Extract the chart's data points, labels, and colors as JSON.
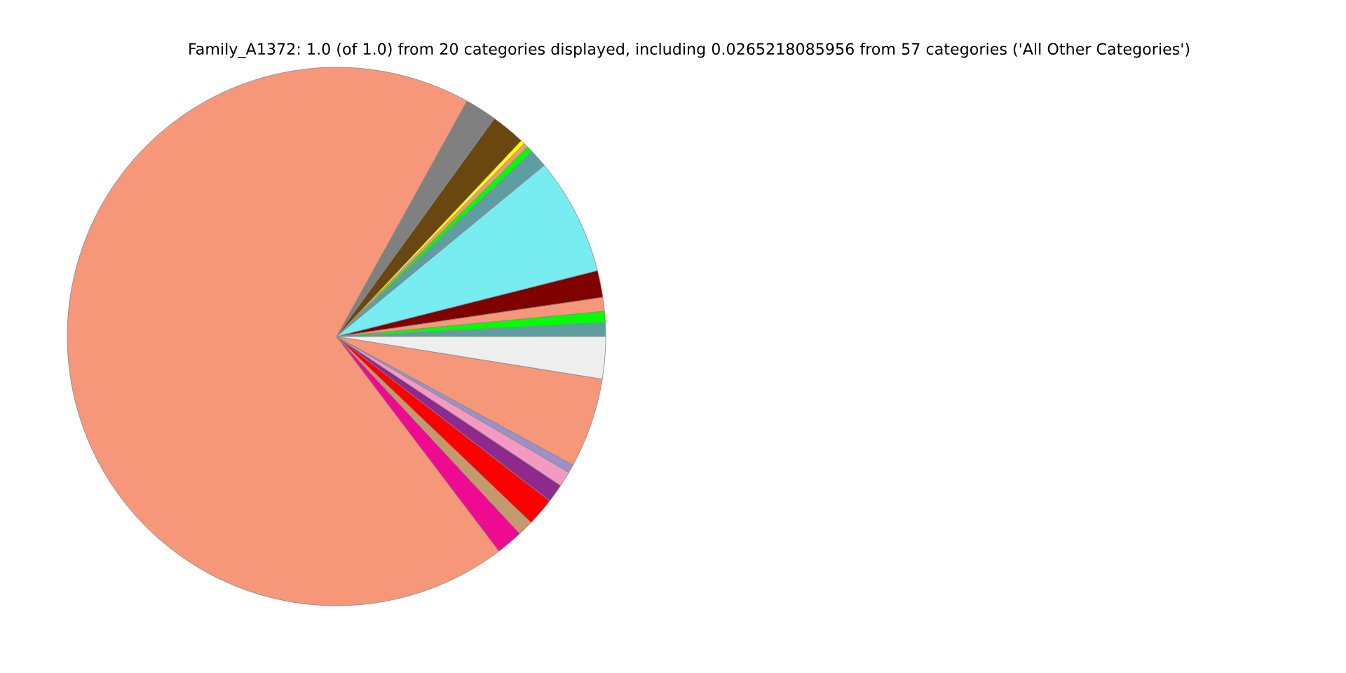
{
  "chart_data": {
    "type": "pie",
    "title": "Family_A1372: 1.0 (of 1.0) from 20 categories displayed, including 0.0265218085956 from 57 categories ('All Other Categories')",
    "categories": [
      null,
      null,
      null,
      null,
      null,
      null,
      null,
      null,
      null,
      null,
      null,
      null,
      null,
      null,
      null,
      null,
      null,
      null,
      null,
      null
    ],
    "values": [
      0.83,
      0.67,
      0.83,
      1.61,
      7.03,
      1.11,
      0.36,
      0.28,
      0.25,
      2.06,
      1.92,
      68.36,
      1.61,
      0.94,
      1.69,
      1.11,
      0.92,
      0.5,
      5.39,
      2.53
    ],
    "colors": [
      "#5f9ea0",
      "#00ff00",
      "#f7977a",
      "#800000",
      "#77ecf1",
      "#5f9ea0",
      "#00ff00",
      "#f7977a",
      "#ffff00",
      "#6b4710",
      "#808080",
      "#f7977a",
      "#ee0a91",
      "#c49a6c",
      "#ff0000",
      "#8e2a8e",
      "#f49ac2",
      "#9e8fc7",
      "#f7977a",
      "#eeeeee"
    ]
  }
}
